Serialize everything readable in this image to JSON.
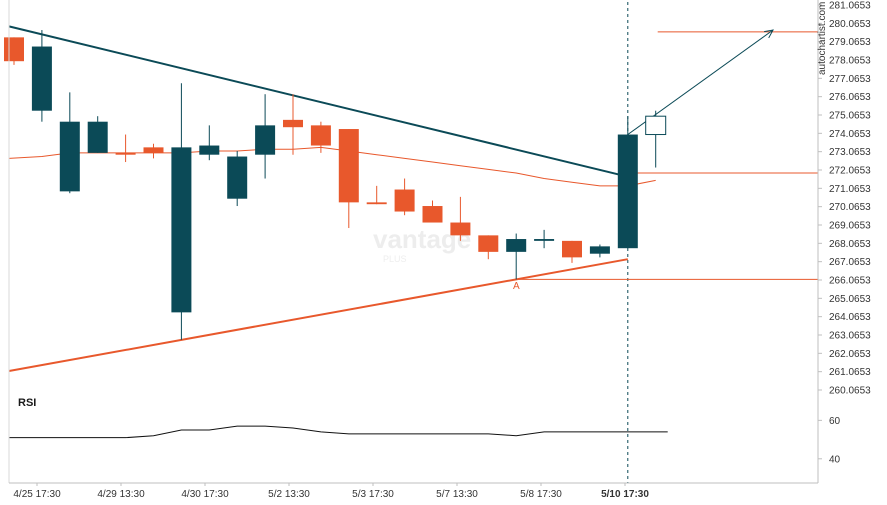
{
  "chart_data": {
    "type": "candlestick",
    "price_axis": {
      "ticks": [
        "281.0653",
        "280.0653",
        "279.0653",
        "278.0653",
        "277.0653",
        "276.0653",
        "275.0653",
        "274.0653",
        "273.0653",
        "272.0653",
        "271.0653",
        "270.0653",
        "269.0653",
        "268.0653",
        "267.0653",
        "266.0653",
        "265.0653",
        "264.0653",
        "263.0653",
        "262.0653",
        "261.0653",
        "260.0653"
      ],
      "range": [
        259.5,
        281.3
      ]
    },
    "time_axis": {
      "labels": [
        "4/25 17:30",
        "4/29 13:30",
        "4/30 17:30",
        "5/2 13:30",
        "5/3 17:30",
        "5/7 13:30",
        "5/8 17:30",
        "5/10 17:30"
      ],
      "highlighted": "5/10 17:30"
    },
    "candles": [
      {
        "o": 279.3,
        "h": 279.3,
        "l": 277.8,
        "c": 278.0
      },
      {
        "o": 275.3,
        "h": 279.7,
        "l": 274.7,
        "c": 278.8
      },
      {
        "o": 270.9,
        "h": 276.3,
        "l": 270.8,
        "c": 274.7
      },
      {
        "o": 273.0,
        "h": 275.0,
        "l": 273.0,
        "c": 274.7
      },
      {
        "o": 273.0,
        "h": 274.0,
        "l": 272.5,
        "c": 272.9
      },
      {
        "o": 273.3,
        "h": 273.5,
        "l": 272.7,
        "c": 273.0
      },
      {
        "o": 264.3,
        "h": 276.8,
        "l": 262.8,
        "c": 273.3
      },
      {
        "o": 272.9,
        "h": 274.5,
        "l": 272.6,
        "c": 273.4
      },
      {
        "o": 270.5,
        "h": 273.1,
        "l": 270.1,
        "c": 272.8
      },
      {
        "o": 272.9,
        "h": 276.2,
        "l": 271.6,
        "c": 274.5
      },
      {
        "o": 274.8,
        "h": 276.2,
        "l": 272.9,
        "c": 274.4
      },
      {
        "o": 274.5,
        "h": 274.7,
        "l": 273.0,
        "c": 273.4
      },
      {
        "o": 274.3,
        "h": 274.3,
        "l": 268.9,
        "c": 270.3
      },
      {
        "o": 270.3,
        "h": 271.2,
        "l": 270.2,
        "c": 270.2
      },
      {
        "o": 271.0,
        "h": 271.6,
        "l": 269.6,
        "c": 269.8
      },
      {
        "o": 270.1,
        "h": 270.4,
        "l": 269.2,
        "c": 269.2
      },
      {
        "o": 269.2,
        "h": 270.6,
        "l": 268.2,
        "c": 268.5
      },
      {
        "o": 268.5,
        "h": 268.5,
        "l": 267.2,
        "c": 267.6
      },
      {
        "o": 267.6,
        "h": 268.6,
        "l": 266.1,
        "c": 268.3
      },
      {
        "o": 268.2,
        "h": 268.8,
        "l": 267.8,
        "c": 268.3
      },
      {
        "o": 268.2,
        "h": 268.2,
        "l": 267.0,
        "c": 267.3
      },
      {
        "o": 267.5,
        "h": 268.0,
        "l": 267.3,
        "c": 267.9
      },
      {
        "o": 267.8,
        "h": 275.0,
        "l": 267.8,
        "c": 274.0
      },
      {
        "o": 274.0,
        "h": 275.3,
        "l": 272.2,
        "c": 275.0
      }
    ],
    "colors": {
      "up": "#0b4a57",
      "down": "#e8582c"
    },
    "moving_average": [
      272.7,
      272.8,
      273.0,
      273.0,
      273.0,
      273.0,
      273.0,
      273.1,
      273.1,
      273.2,
      273.2,
      273.3,
      273.1,
      272.9,
      272.7,
      272.5,
      272.3,
      272.1,
      271.9,
      271.6,
      271.4,
      271.2,
      271.2,
      271.5
    ],
    "resistance_line": {
      "from": [
        0,
        279.9
      ],
      "to": [
        22,
        271.7
      ],
      "color": "#0b4a57"
    },
    "support_line": {
      "from": [
        0,
        261.1
      ],
      "to": [
        22,
        267.2
      ],
      "color": "#e8582c"
    },
    "target_level": {
      "value": 279.6,
      "color": "#e8582c"
    },
    "entry_level": {
      "value": 271.9,
      "color": "#e8582c"
    },
    "point_a_level": {
      "value": 266.1,
      "color": "#e8582c"
    },
    "point_a_label": "A",
    "projection_arrow": {
      "from": [
        22,
        274.0
      ],
      "to": [
        28,
        279.7
      ]
    },
    "rsi": {
      "label": "RSI",
      "ticks": [
        "60",
        "40"
      ],
      "range": [
        30,
        68
      ],
      "values": [
        51,
        51,
        51,
        51,
        51,
        52,
        55,
        55,
        57,
        57,
        56,
        54,
        53,
        53,
        53,
        53,
        53,
        53,
        52,
        54,
        54,
        54,
        54,
        54
      ]
    },
    "watermark": {
      "text": "vantage",
      "sub": "PLUS"
    },
    "source": "autochartist.com"
  }
}
